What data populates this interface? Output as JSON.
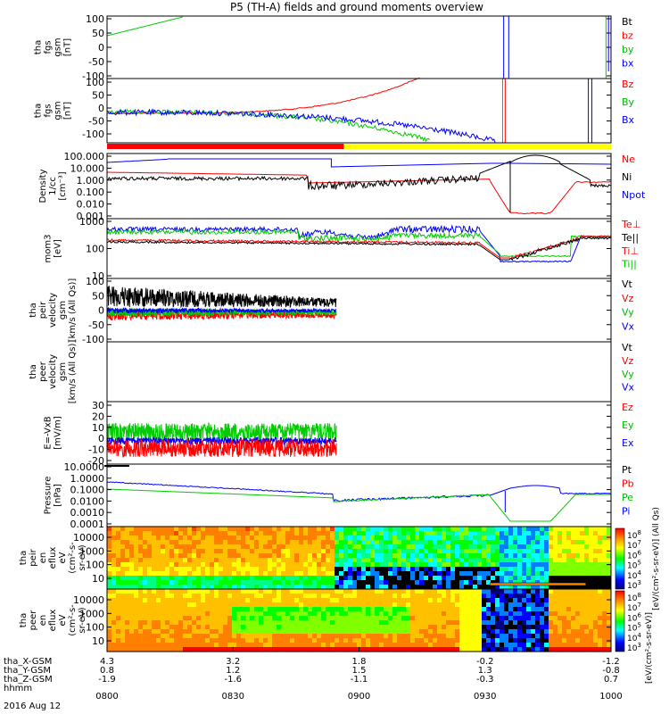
{
  "title": "P5 (TH-A) fields and ground moments overview",
  "chart_data": {
    "type": "line",
    "title": "P5 (TH-A) fields and ground moments overview",
    "x_tick_labels": [
      "0800",
      "0830",
      "0900",
      "0930",
      "1000"
    ],
    "date_label": "2016 Aug 12",
    "ephemeris": [
      {
        "name": "tha_X-GSM",
        "values": [
          "4.3",
          "3.2",
          "1.8",
          "-0.2",
          "-1.2"
        ]
      },
      {
        "name": "tha_Y-GSM",
        "values": [
          "0.8",
          "1.2",
          "1.5",
          "1.3",
          "-0.8"
        ]
      },
      {
        "name": "tha_Z-GSM",
        "values": [
          "-1.9",
          "-1.6",
          "-1.1",
          "-0.3",
          "0.7"
        ]
      },
      {
        "name": "hhmm",
        "values": [
          "",
          "",
          "",
          "",
          ""
        ]
      }
    ],
    "mode_bar": {
      "red_until_time": "0852",
      "after": "yellow"
    },
    "panels": [
      {
        "id": "fgs",
        "ylabel": [
          "tha",
          "fgs",
          "gsm",
          "[nT]"
        ],
        "scale": "linear",
        "ylim": [
          -100,
          100
        ],
        "ticks": [
          "100",
          "50",
          "0",
          "-50",
          "-100"
        ],
        "legend": [
          {
            "name": "Bt",
            "color": "#000000"
          },
          {
            "name": "bz",
            "color": "#ff0000"
          },
          {
            "name": "by",
            "color": "#00bb00"
          },
          {
            "name": "bx",
            "color": "#0000ff"
          }
        ]
      },
      {
        "id": "fgs2",
        "ylabel": [
          "tha",
          "fgs",
          "gsm",
          "[nT]"
        ],
        "scale": "linear",
        "ylim": [
          -130,
          100
        ],
        "ticks": [
          "100",
          "50",
          "0",
          "-50",
          "-100"
        ],
        "legend": [
          {
            "name": "Bz",
            "color": "#ff0000"
          },
          {
            "name": "By",
            "color": "#00bb00"
          },
          {
            "name": "Bx",
            "color": "#0000ff"
          }
        ]
      },
      {
        "id": "density",
        "ylabel": [
          "Density",
          "1/cc",
          "[cm⁻³]"
        ],
        "scale": "log",
        "ticks": [
          "100.000",
          "10.000",
          "1.000",
          "0.100",
          "0.010",
          "0.001"
        ],
        "legend": [
          {
            "name": "Ne",
            "color": "#ff0000"
          },
          {
            "name": "Ni",
            "color": "#000000"
          },
          {
            "name": "Npot",
            "color": "#0000ff"
          }
        ]
      },
      {
        "id": "temp",
        "ylabel": [
          "mom3",
          "[eV]"
        ],
        "scale": "log",
        "ticks": [
          "1000",
          "100",
          "10"
        ],
        "legend": [
          {
            "name": "Te⊥",
            "color": "#ff0000"
          },
          {
            "name": "Te||",
            "color": "#000000"
          },
          {
            "name": "Ti⊥",
            "color": "#ff0000"
          },
          {
            "name": "Ti||",
            "color": "#00bb00"
          }
        ]
      },
      {
        "id": "peir_v",
        "ylabel": [
          "tha",
          "peir",
          "velocity",
          "gsm",
          "[km/s (All Qs)]"
        ],
        "scale": "linear",
        "ylim": [
          -100,
          100
        ],
        "ticks": [
          "100",
          "50",
          "0",
          "-50",
          "-100"
        ],
        "legend": [
          {
            "name": "Vt",
            "color": "#000000"
          },
          {
            "name": "Vz",
            "color": "#ff0000"
          },
          {
            "name": "Vy",
            "color": "#00bb00"
          },
          {
            "name": "Vx",
            "color": "#0000ff"
          }
        ]
      },
      {
        "id": "peer_v",
        "ylabel": [
          "tha",
          "peer",
          "velocity",
          "gsm",
          "[km/s (All Qs)]"
        ],
        "scale": "linear",
        "ticks": [],
        "legend": [
          {
            "name": "Vt",
            "color": "#000000"
          },
          {
            "name": "Vz",
            "color": "#ff0000"
          },
          {
            "name": "Vy",
            "color": "#00bb00"
          },
          {
            "name": "Vx",
            "color": "#0000ff"
          }
        ]
      },
      {
        "id": "efield",
        "ylabel": [
          "E=-VxB",
          "[mV/m]"
        ],
        "scale": "linear",
        "ylim": [
          -20,
          30
        ],
        "ticks": [
          "30",
          "20",
          "10",
          "0",
          "-10",
          "-20"
        ],
        "legend": [
          {
            "name": "Ez",
            "color": "#ff0000"
          },
          {
            "name": "Ey",
            "color": "#00bb00"
          },
          {
            "name": "Ex",
            "color": "#0000ff"
          }
        ]
      },
      {
        "id": "pressure",
        "ylabel": [
          "Pressure",
          "[nPa]"
        ],
        "scale": "log",
        "ticks": [
          "10.0000",
          "1.0000",
          "0.1000",
          "0.0100",
          "0.0010",
          "0.0001"
        ],
        "legend": [
          {
            "name": "Pt",
            "color": "#000000"
          },
          {
            "name": "Pb",
            "color": "#ff0000"
          },
          {
            "name": "Pe",
            "color": "#00bb00"
          },
          {
            "name": "Pi",
            "color": "#0000ff"
          }
        ]
      },
      {
        "id": "peir_en",
        "ylabel": [
          "tha",
          "peir",
          "en",
          "eflux",
          "eV",
          "(cm²-s-",
          "sr-eV)"
        ],
        "scale": "log",
        "ticks": [
          "10000",
          "1000",
          "100",
          "10"
        ],
        "legend": []
      },
      {
        "id": "peer_en",
        "ylabel": [
          "tha",
          "peer",
          "en",
          "eflux",
          "eV",
          "(cm²-s-",
          "sr-eV)"
        ],
        "scale": "log",
        "ticks": [
          "10000",
          "1000",
          "100",
          "10"
        ],
        "legend": []
      }
    ],
    "colorbars": [
      {
        "label": "[eV/(cm²-s-sr-eV)] (All Qs)",
        "tick_exponents": [
          "8",
          "7",
          "6",
          "5",
          "4",
          "3"
        ]
      },
      {
        "label": "[eV/(cm²-s-sr-eV)]",
        "tick_exponents": [
          "8",
          "7",
          "6",
          "5",
          "4",
          "3"
        ]
      }
    ]
  },
  "colors": {
    "red": "#ff0000",
    "green": "#00cc00",
    "blue": "#0000ff",
    "black": "#000000",
    "yellow": "#ffff00"
  }
}
